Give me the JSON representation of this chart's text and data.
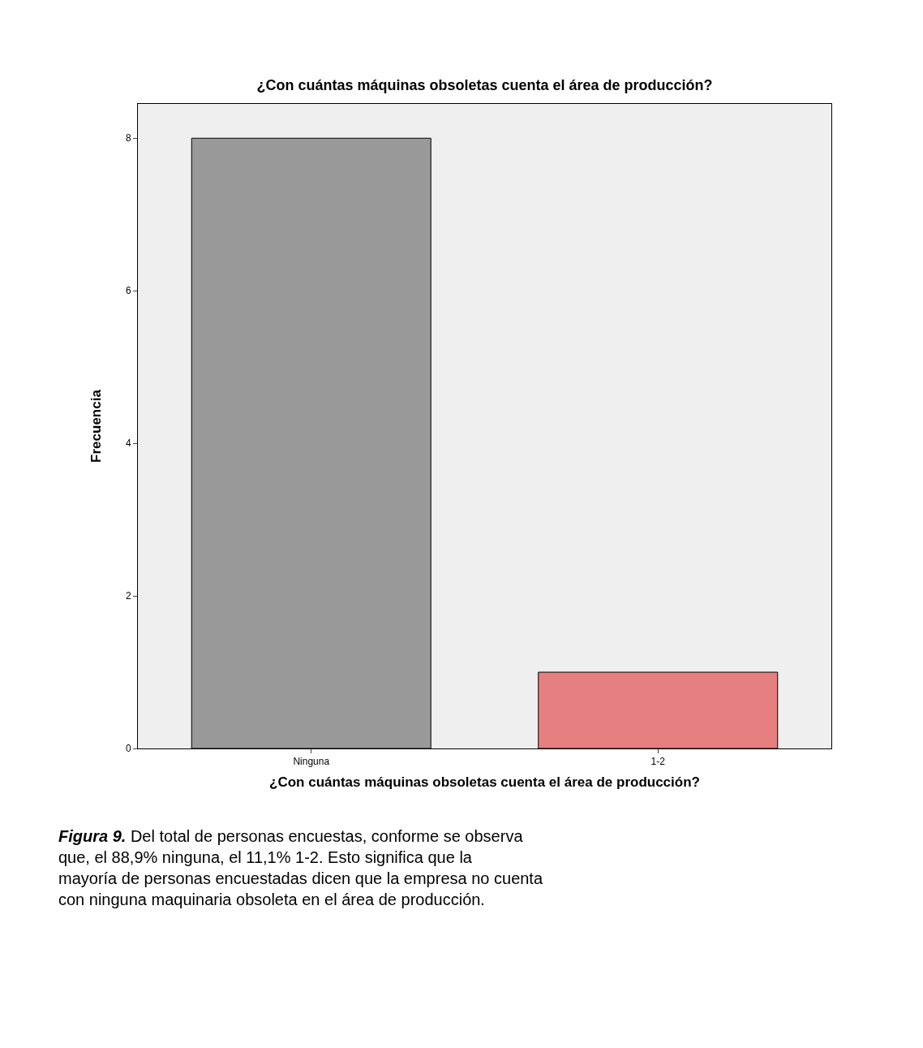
{
  "chart_data": {
    "type": "bar",
    "title": "¿Con cuántas máquinas obsoletas cuenta el área de producción?",
    "xlabel": "¿Con cuántas máquinas obsoletas cuenta el área de producción?",
    "ylabel": "Frecuencia",
    "categories": [
      "Ninguna",
      "1-2"
    ],
    "values": [
      8,
      1
    ],
    "colors": [
      "#999999",
      "#e68080"
    ],
    "ylim": [
      0,
      8.45
    ],
    "yticks": [
      0,
      2,
      4,
      6,
      8
    ],
    "grid": false,
    "legend": false,
    "annotations": [
      "Figura 9.",
      "Del total de personas encuestas, conforme se observa que, el 88,9% ninguna, el 11,1% 1-2. Esto significa que la mayoría de personas encuestadas dicen que la empresa no cuenta con ninguna maquinaria obsoleta en el área de producción."
    ]
  }
}
